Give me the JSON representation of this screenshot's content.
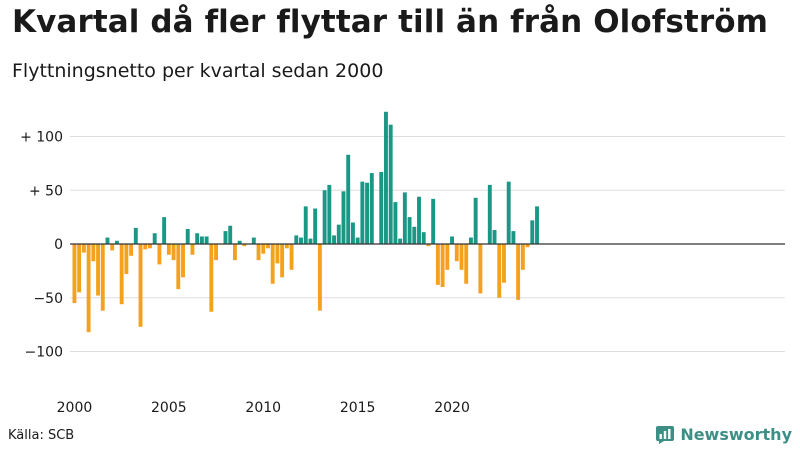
{
  "title": "Kvartal då fler flyttar till än från Olofström",
  "subtitle": "Flyttningsnetto per kvartal sedan 2000",
  "source": "Källa: SCB",
  "brand": {
    "name": "Newsworthy",
    "icon": "newsworthy-logo-icon"
  },
  "colors": {
    "positive": "#1b9786",
    "negative": "#f4a21e",
    "grid": "#dddddd",
    "zero": "#333333"
  },
  "chart_data": {
    "type": "bar",
    "title": "Kvartal då fler flyttar till än från Olofström",
    "subtitle": "Flyttningsnetto per kvartal sedan 2000",
    "xlabel": "",
    "ylabel": "",
    "x_start": "2000Q1",
    "ylim": [
      -115,
      130
    ],
    "y_ticks": [
      -100,
      -50,
      0,
      50,
      100
    ],
    "y_tick_labels": [
      "−100",
      "−50",
      "0",
      "+  50",
      "+ 100"
    ],
    "x_ticks": [
      "2000",
      "2005",
      "2010",
      "2015",
      "2020"
    ],
    "grid": true,
    "values": [
      -55,
      -45,
      -8,
      -82,
      -16,
      -48,
      -62,
      6,
      -6,
      3,
      -56,
      -28,
      -11,
      15,
      -77,
      -5,
      -4,
      10,
      -19,
      25,
      -10,
      -15,
      -42,
      -31,
      14,
      -10,
      10,
      7,
      7,
      -63,
      -15,
      0,
      12,
      17,
      -15,
      3,
      -2,
      0,
      6,
      -15,
      -9,
      -4,
      -37,
      -18,
      -31,
      -4,
      -24,
      8,
      6,
      35,
      5,
      33,
      -62,
      50,
      55,
      8,
      18,
      49,
      83,
      20,
      6,
      58,
      57,
      66,
      0,
      67,
      123,
      111,
      39,
      5,
      48,
      25,
      16,
      44,
      11,
      -2,
      42,
      -38,
      -40,
      -24,
      7,
      -16,
      -24,
      -37,
      6,
      43,
      -46,
      0,
      55,
      13,
      -50,
      -36,
      58,
      12,
      -52,
      -24,
      -3,
      22,
      35
    ]
  }
}
